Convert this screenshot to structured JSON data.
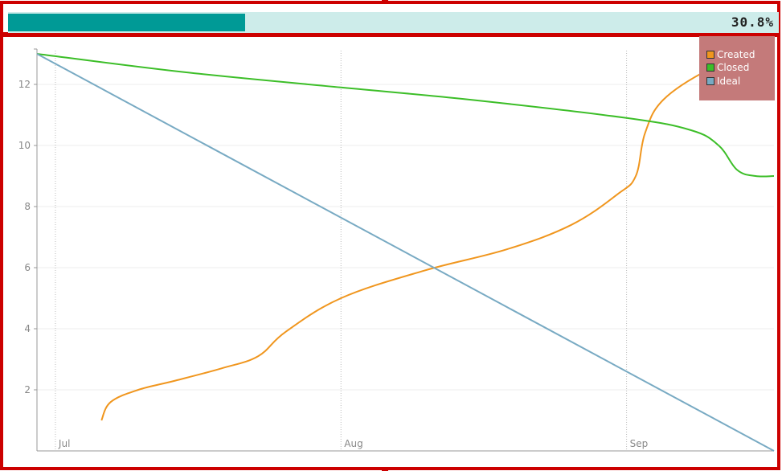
{
  "progress": {
    "text": "30.8%",
    "value": 0.308,
    "fill_color": "#009a96",
    "track_color": "#cdecea"
  },
  "chart_data": {
    "type": "line",
    "title": "",
    "xlabel": "",
    "ylabel": "",
    "x_ticks": [
      {
        "label": "Jul",
        "date": "2013-07-01"
      },
      {
        "label": "Aug",
        "date": "2013-08-01"
      },
      {
        "label": "Sep",
        "date": "2013-09-01"
      }
    ],
    "xlim": [
      "2013-06-29",
      "2013-09-17"
    ],
    "ylim": [
      0,
      13
    ],
    "y_ticks": [
      2,
      4,
      6,
      8,
      10,
      12
    ],
    "grid": true,
    "legend": {
      "placement": "top-right",
      "background": "#c47a7a"
    },
    "series": [
      {
        "name": "Created",
        "color": "#f0961e",
        "points": [
          [
            "2013-07-06",
            1.0
          ],
          [
            "2013-07-07",
            1.6
          ],
          [
            "2013-07-10",
            2.0
          ],
          [
            "2013-07-14",
            2.3
          ],
          [
            "2013-07-19",
            2.7
          ],
          [
            "2013-07-23",
            3.1
          ],
          [
            "2013-07-26",
            3.9
          ],
          [
            "2013-08-01",
            5.0
          ],
          [
            "2013-08-10",
            5.9
          ],
          [
            "2013-08-19",
            6.6
          ],
          [
            "2013-08-26",
            7.4
          ],
          [
            "2013-08-31",
            8.4
          ],
          [
            "2013-09-02",
            9.0
          ],
          [
            "2013-09-03",
            10.4
          ],
          [
            "2013-09-05",
            11.5
          ],
          [
            "2013-09-10",
            12.5
          ],
          [
            "2013-09-14",
            12.9
          ],
          [
            "2013-09-17",
            13.0
          ]
        ]
      },
      {
        "name": "Closed",
        "color": "#3cbe28",
        "points": [
          [
            "2013-06-29",
            13.0
          ],
          [
            "2013-07-15",
            12.4
          ],
          [
            "2013-08-01",
            11.9
          ],
          [
            "2013-08-15",
            11.5
          ],
          [
            "2013-09-01",
            10.9
          ],
          [
            "2013-09-08",
            10.5
          ],
          [
            "2013-09-11",
            10.0
          ],
          [
            "2013-09-13",
            9.2
          ],
          [
            "2013-09-15",
            9.0
          ],
          [
            "2013-09-17",
            9.0
          ]
        ]
      },
      {
        "name": "Ideal",
        "color": "#78aac3",
        "points": [
          [
            "2013-06-29",
            13.0
          ],
          [
            "2013-09-17",
            0.0
          ]
        ]
      }
    ]
  }
}
